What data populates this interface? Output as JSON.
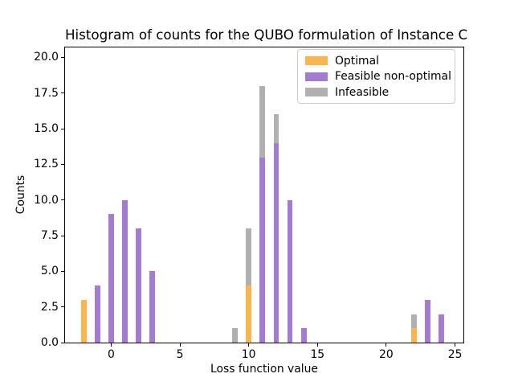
{
  "chart_data": {
    "type": "bar",
    "stacked": true,
    "title": "Histogram of counts for the QUBO formulation of Instance C",
    "xlabel": "Loss function value",
    "ylabel": "Counts",
    "xlim": [
      -3.35,
      25.61
    ],
    "ylim": [
      0,
      20.7
    ],
    "bar_width": 0.4,
    "grid": false,
    "legend_position": "upper right",
    "colors": {
      "optimal": "#FCB44C",
      "feasible_non_optimal": "#A37CD1",
      "infeasible": "#B0B0B0",
      "axis": "#000000",
      "legend_border": "#cccccc"
    },
    "xticks": [
      {
        "value": 0,
        "label": "0"
      },
      {
        "value": 5,
        "label": "5"
      },
      {
        "value": 10,
        "label": "10"
      },
      {
        "value": 15,
        "label": "15"
      },
      {
        "value": 20,
        "label": "20"
      },
      {
        "value": 25,
        "label": "25"
      }
    ],
    "yticks": [
      {
        "value": 0,
        "label": "0.0"
      },
      {
        "value": 2.5,
        "label": "2.5"
      },
      {
        "value": 5,
        "label": "5.0"
      },
      {
        "value": 7.5,
        "label": "7.5"
      },
      {
        "value": 10,
        "label": "10.0"
      },
      {
        "value": 12.5,
        "label": "12.5"
      },
      {
        "value": 15,
        "label": "15.0"
      },
      {
        "value": 17.5,
        "label": "17.5"
      },
      {
        "value": 20,
        "label": "20.0"
      }
    ],
    "series": [
      {
        "name": "Optimal",
        "color": "#FCB44C",
        "points": [
          {
            "x": -2,
            "y": 3
          },
          {
            "x": 10,
            "y": 4
          },
          {
            "x": 22,
            "y": 1
          }
        ]
      },
      {
        "name": "Feasible non-optimal",
        "color": "#A37CD1",
        "points": [
          {
            "x": -1,
            "y": 4
          },
          {
            "x": 0,
            "y": 9
          },
          {
            "x": 1,
            "y": 10
          },
          {
            "x": 2,
            "y": 8
          },
          {
            "x": 3,
            "y": 5
          },
          {
            "x": 11,
            "y": 13
          },
          {
            "x": 12,
            "y": 14
          },
          {
            "x": 13,
            "y": 10
          },
          {
            "x": 14,
            "y": 1
          },
          {
            "x": 23,
            "y": 3
          },
          {
            "x": 24,
            "y": 2
          }
        ]
      },
      {
        "name": "Infeasible",
        "color": "#B0B0B0",
        "points": [
          {
            "x": 9,
            "y": 1
          },
          {
            "x": 10,
            "y": 4
          },
          {
            "x": 11,
            "y": 5
          },
          {
            "x": 12,
            "y": 2
          },
          {
            "x": 22,
            "y": 1
          }
        ]
      }
    ]
  }
}
